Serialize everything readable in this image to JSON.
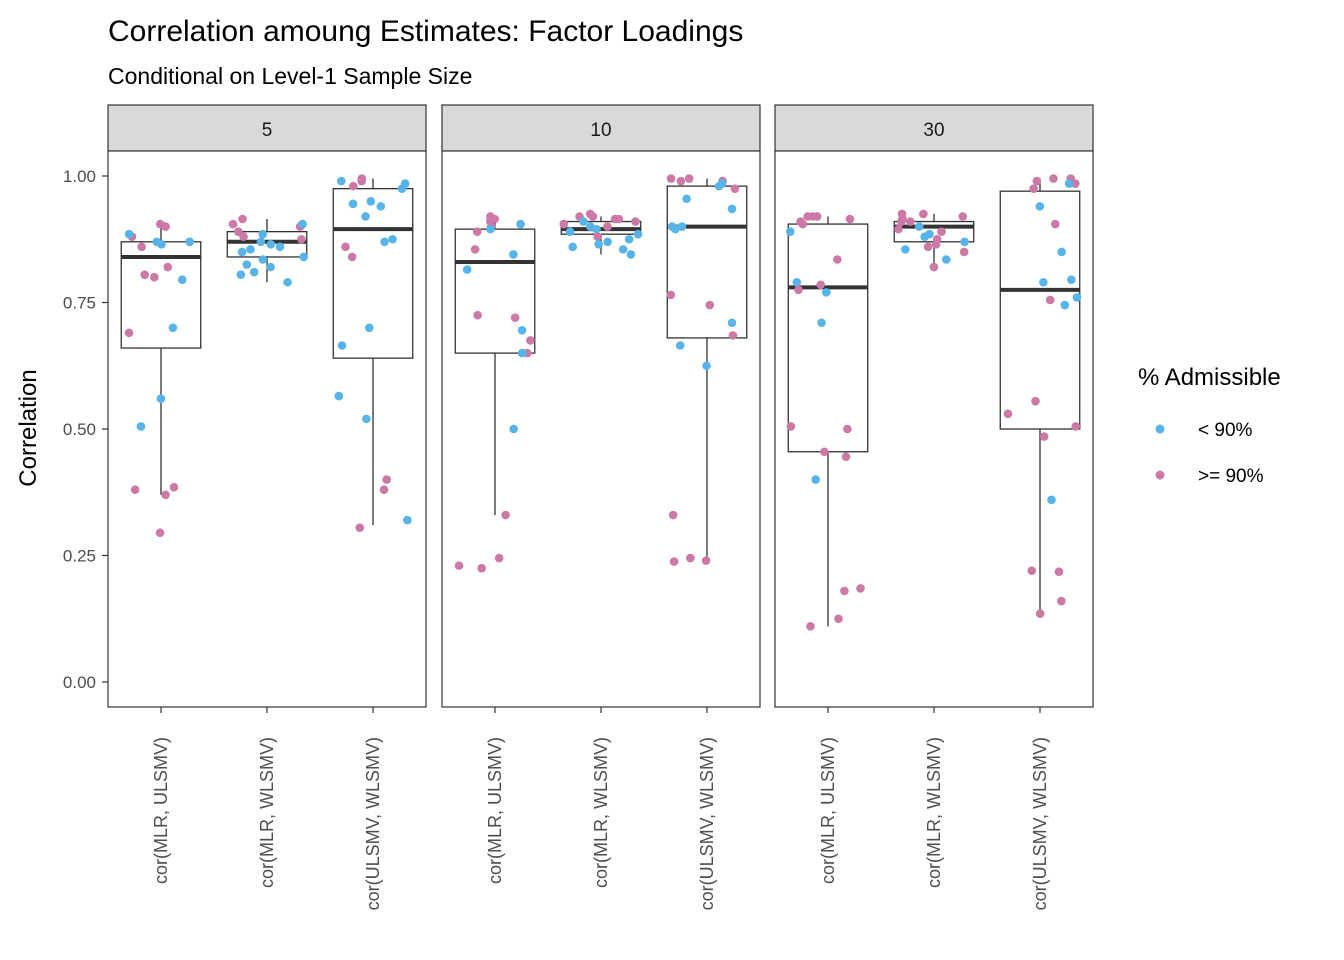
{
  "colors": {
    "below_90": "#56B4E9",
    "above_90": "#CC79A7",
    "box_line": "#333333",
    "strip_fill": "#d9d9d9",
    "panel_border": "#333333"
  },
  "chart_data": {
    "type": "boxplot",
    "title": "Correlation amoung Estimates: Factor Loadings",
    "subtitle": "Conditional on Level-1 Sample Size",
    "xlabel": "",
    "ylabel": "Correlation",
    "ylim": [
      -0.05,
      1.12
    ],
    "y_ticks": [
      0.0,
      0.25,
      0.5,
      0.75,
      1.0
    ],
    "y_tick_labels": [
      "0.00",
      "0.25",
      "0.50",
      "0.75",
      "1.00"
    ],
    "categories": [
      "cor(MLR, ULSMV)",
      "cor(MLR, WLSMV)",
      "cor(ULSMV, WLSMV)"
    ],
    "legend": {
      "title": "% Admissible",
      "position": "right",
      "entries": [
        {
          "label": "< 90%",
          "color_key": "below_90"
        },
        {
          "label": ">= 90%",
          "color_key": "above_90"
        }
      ]
    },
    "facets": [
      {
        "label": "5",
        "boxes": [
          {
            "min": 0.37,
            "q1": 0.66,
            "median": 0.84,
            "q3": 0.87,
            "max": 0.905,
            "points": [
              {
                "y": 0.905,
                "g": 1
              },
              {
                "y": 0.9,
                "g": 1
              },
              {
                "y": 0.88,
                "g": 1
              },
              {
                "y": 0.86,
                "g": 1
              },
              {
                "y": 0.87,
                "g": 0
              },
              {
                "y": 0.865,
                "g": 0
              },
              {
                "y": 0.885,
                "g": 0
              },
              {
                "y": 0.87,
                "g": 0
              },
              {
                "y": 0.82,
                "g": 1
              },
              {
                "y": 0.8,
                "g": 1
              },
              {
                "y": 0.805,
                "g": 1
              },
              {
                "y": 0.795,
                "g": 0
              },
              {
                "y": 0.7,
                "g": 0
              },
              {
                "y": 0.69,
                "g": 1
              },
              {
                "y": 0.56,
                "g": 0
              },
              {
                "y": 0.505,
                "g": 0
              },
              {
                "y": 0.385,
                "g": 1
              },
              {
                "y": 0.38,
                "g": 1
              },
              {
                "y": 0.37,
                "g": 1
              },
              {
                "y": 0.295,
                "g": 1
              }
            ]
          },
          {
            "min": 0.79,
            "q1": 0.84,
            "median": 0.87,
            "q3": 0.89,
            "max": 0.915,
            "points": [
              {
                "y": 0.915,
                "g": 1
              },
              {
                "y": 0.905,
                "g": 1
              },
              {
                "y": 0.9,
                "g": 1
              },
              {
                "y": 0.905,
                "g": 0
              },
              {
                "y": 0.89,
                "g": 1
              },
              {
                "y": 0.885,
                "g": 0
              },
              {
                "y": 0.875,
                "g": 1
              },
              {
                "y": 0.88,
                "g": 1
              },
              {
                "y": 0.87,
                "g": 0
              },
              {
                "y": 0.865,
                "g": 0
              },
              {
                "y": 0.86,
                "g": 0
              },
              {
                "y": 0.855,
                "g": 0
              },
              {
                "y": 0.85,
                "g": 0
              },
              {
                "y": 0.84,
                "g": 0
              },
              {
                "y": 0.835,
                "g": 0
              },
              {
                "y": 0.825,
                "g": 0
              },
              {
                "y": 0.82,
                "g": 0
              },
              {
                "y": 0.81,
                "g": 0
              },
              {
                "y": 0.805,
                "g": 0
              },
              {
                "y": 0.79,
                "g": 0
              }
            ]
          },
          {
            "min": 0.31,
            "q1": 0.64,
            "median": 0.895,
            "q3": 0.975,
            "max": 0.995,
            "points": [
              {
                "y": 0.995,
                "g": 1
              },
              {
                "y": 0.99,
                "g": 1
              },
              {
                "y": 0.99,
                "g": 0
              },
              {
                "y": 0.985,
                "g": 0
              },
              {
                "y": 0.98,
                "g": 1
              },
              {
                "y": 0.975,
                "g": 0
              },
              {
                "y": 0.95,
                "g": 0
              },
              {
                "y": 0.945,
                "g": 0
              },
              {
                "y": 0.94,
                "g": 0
              },
              {
                "y": 0.92,
                "g": 0
              },
              {
                "y": 0.875,
                "g": 0
              },
              {
                "y": 0.87,
                "g": 0
              },
              {
                "y": 0.86,
                "g": 1
              },
              {
                "y": 0.84,
                "g": 1
              },
              {
                "y": 0.7,
                "g": 0
              },
              {
                "y": 0.665,
                "g": 0
              },
              {
                "y": 0.565,
                "g": 0
              },
              {
                "y": 0.52,
                "g": 0
              },
              {
                "y": 0.4,
                "g": 1
              },
              {
                "y": 0.38,
                "g": 1
              },
              {
                "y": 0.32,
                "g": 0
              },
              {
                "y": 0.305,
                "g": 1
              }
            ]
          }
        ]
      },
      {
        "label": "10",
        "boxes": [
          {
            "min": 0.33,
            "q1": 0.65,
            "median": 0.83,
            "q3": 0.895,
            "max": 0.915,
            "points": [
              {
                "y": 0.92,
                "g": 1
              },
              {
                "y": 0.915,
                "g": 1
              },
              {
                "y": 0.91,
                "g": 1
              },
              {
                "y": 0.905,
                "g": 0
              },
              {
                "y": 0.9,
                "g": 1
              },
              {
                "y": 0.895,
                "g": 0
              },
              {
                "y": 0.89,
                "g": 1
              },
              {
                "y": 0.855,
                "g": 1
              },
              {
                "y": 0.845,
                "g": 0
              },
              {
                "y": 0.815,
                "g": 0
              },
              {
                "y": 0.725,
                "g": 1
              },
              {
                "y": 0.72,
                "g": 1
              },
              {
                "y": 0.695,
                "g": 0
              },
              {
                "y": 0.675,
                "g": 1
              },
              {
                "y": 0.65,
                "g": 1
              },
              {
                "y": 0.65,
                "g": 0
              },
              {
                "y": 0.5,
                "g": 0
              },
              {
                "y": 0.33,
                "g": 1
              },
              {
                "y": 0.245,
                "g": 1
              },
              {
                "y": 0.23,
                "g": 1
              },
              {
                "y": 0.225,
                "g": 1
              }
            ]
          },
          {
            "min": 0.845,
            "q1": 0.885,
            "median": 0.895,
            "q3": 0.91,
            "max": 0.92,
            "points": [
              {
                "y": 0.925,
                "g": 1
              },
              {
                "y": 0.92,
                "g": 1
              },
              {
                "y": 0.92,
                "g": 1
              },
              {
                "y": 0.915,
                "g": 1
              },
              {
                "y": 0.915,
                "g": 1
              },
              {
                "y": 0.91,
                "g": 0
              },
              {
                "y": 0.91,
                "g": 1
              },
              {
                "y": 0.905,
                "g": 1
              },
              {
                "y": 0.9,
                "g": 0
              },
              {
                "y": 0.9,
                "g": 1
              },
              {
                "y": 0.895,
                "g": 0
              },
              {
                "y": 0.89,
                "g": 0
              },
              {
                "y": 0.885,
                "g": 0
              },
              {
                "y": 0.88,
                "g": 1
              },
              {
                "y": 0.875,
                "g": 0
              },
              {
                "y": 0.87,
                "g": 0
              },
              {
                "y": 0.865,
                "g": 0
              },
              {
                "y": 0.86,
                "g": 0
              },
              {
                "y": 0.855,
                "g": 0
              },
              {
                "y": 0.845,
                "g": 0
              }
            ]
          },
          {
            "min": 0.245,
            "q1": 0.68,
            "median": 0.9,
            "q3": 0.98,
            "max": 0.995,
            "points": [
              {
                "y": 0.995,
                "g": 1
              },
              {
                "y": 0.995,
                "g": 1
              },
              {
                "y": 0.99,
                "g": 1
              },
              {
                "y": 0.99,
                "g": 1
              },
              {
                "y": 0.985,
                "g": 0
              },
              {
                "y": 0.98,
                "g": 0
              },
              {
                "y": 0.975,
                "g": 1
              },
              {
                "y": 0.955,
                "g": 0
              },
              {
                "y": 0.935,
                "g": 0
              },
              {
                "y": 0.9,
                "g": 0
              },
              {
                "y": 0.9,
                "g": 0
              },
              {
                "y": 0.895,
                "g": 0
              },
              {
                "y": 0.765,
                "g": 1
              },
              {
                "y": 0.745,
                "g": 1
              },
              {
                "y": 0.71,
                "g": 0
              },
              {
                "y": 0.685,
                "g": 1
              },
              {
                "y": 0.665,
                "g": 0
              },
              {
                "y": 0.625,
                "g": 0
              },
              {
                "y": 0.33,
                "g": 1
              },
              {
                "y": 0.245,
                "g": 1
              },
              {
                "y": 0.24,
                "g": 1
              },
              {
                "y": 0.238,
                "g": 1
              }
            ]
          }
        ]
      },
      {
        "label": "30",
        "boxes": [
          {
            "min": 0.11,
            "q1": 0.455,
            "median": 0.78,
            "q3": 0.905,
            "max": 0.92,
            "points": [
              {
                "y": 0.92,
                "g": 1
              },
              {
                "y": 0.92,
                "g": 1
              },
              {
                "y": 0.92,
                "g": 1
              },
              {
                "y": 0.915,
                "g": 1
              },
              {
                "y": 0.91,
                "g": 1
              },
              {
                "y": 0.905,
                "g": 1
              },
              {
                "y": 0.89,
                "g": 0
              },
              {
                "y": 0.835,
                "g": 1
              },
              {
                "y": 0.79,
                "g": 0
              },
              {
                "y": 0.785,
                "g": 1
              },
              {
                "y": 0.775,
                "g": 1
              },
              {
                "y": 0.77,
                "g": 0
              },
              {
                "y": 0.71,
                "g": 0
              },
              {
                "y": 0.505,
                "g": 1
              },
              {
                "y": 0.5,
                "g": 1
              },
              {
                "y": 0.455,
                "g": 1
              },
              {
                "y": 0.445,
                "g": 1
              },
              {
                "y": 0.4,
                "g": 0
              },
              {
                "y": 0.185,
                "g": 1
              },
              {
                "y": 0.18,
                "g": 1
              },
              {
                "y": 0.125,
                "g": 1
              },
              {
                "y": 0.11,
                "g": 1
              }
            ]
          },
          {
            "min": 0.82,
            "q1": 0.87,
            "median": 0.9,
            "q3": 0.91,
            "max": 0.925,
            "points": [
              {
                "y": 0.925,
                "g": 1
              },
              {
                "y": 0.925,
                "g": 1
              },
              {
                "y": 0.92,
                "g": 1
              },
              {
                "y": 0.915,
                "g": 1
              },
              {
                "y": 0.91,
                "g": 1
              },
              {
                "y": 0.91,
                "g": 1
              },
              {
                "y": 0.9,
                "g": 0
              },
              {
                "y": 0.895,
                "g": 1
              },
              {
                "y": 0.89,
                "g": 1
              },
              {
                "y": 0.885,
                "g": 0
              },
              {
                "y": 0.88,
                "g": 0
              },
              {
                "y": 0.875,
                "g": 1
              },
              {
                "y": 0.87,
                "g": 0
              },
              {
                "y": 0.865,
                "g": 1
              },
              {
                "y": 0.86,
                "g": 1
              },
              {
                "y": 0.855,
                "g": 0
              },
              {
                "y": 0.85,
                "g": 1
              },
              {
                "y": 0.835,
                "g": 0
              },
              {
                "y": 0.82,
                "g": 1
              }
            ]
          },
          {
            "min": 0.135,
            "q1": 0.5,
            "median": 0.775,
            "q3": 0.97,
            "max": 0.995,
            "points": [
              {
                "y": 0.995,
                "g": 1
              },
              {
                "y": 0.995,
                "g": 1
              },
              {
                "y": 0.99,
                "g": 1
              },
              {
                "y": 0.985,
                "g": 1
              },
              {
                "y": 0.985,
                "g": 0
              },
              {
                "y": 0.975,
                "g": 1
              },
              {
                "y": 0.94,
                "g": 0
              },
              {
                "y": 0.905,
                "g": 1
              },
              {
                "y": 0.85,
                "g": 0
              },
              {
                "y": 0.795,
                "g": 0
              },
              {
                "y": 0.79,
                "g": 0
              },
              {
                "y": 0.76,
                "g": 0
              },
              {
                "y": 0.755,
                "g": 1
              },
              {
                "y": 0.745,
                "g": 0
              },
              {
                "y": 0.555,
                "g": 1
              },
              {
                "y": 0.53,
                "g": 1
              },
              {
                "y": 0.505,
                "g": 1
              },
              {
                "y": 0.485,
                "g": 1
              },
              {
                "y": 0.36,
                "g": 0
              },
              {
                "y": 0.22,
                "g": 1
              },
              {
                "y": 0.218,
                "g": 1
              },
              {
                "y": 0.16,
                "g": 1
              },
              {
                "y": 0.135,
                "g": 1
              }
            ]
          }
        ]
      }
    ]
  }
}
